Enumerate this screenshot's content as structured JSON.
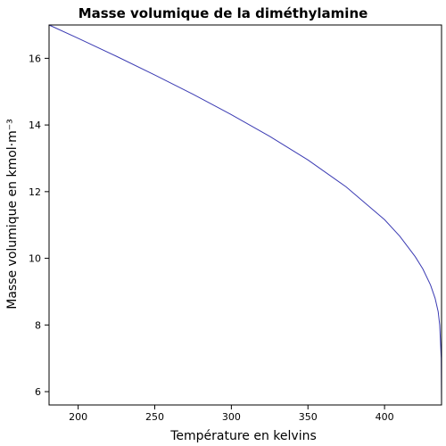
{
  "chart_data": {
    "type": "line",
    "title": "Masse volumique de la diméthylamine",
    "xlabel": "Température en kelvins",
    "ylabel": "Masse volumique en kmol·m⁻³",
    "xlim": [
      181,
      437.2
    ],
    "ylim": [
      5.6,
      17.0
    ],
    "xticks": [
      200,
      250,
      300,
      350,
      400
    ],
    "yticks": [
      6,
      8,
      10,
      12,
      14,
      16
    ],
    "grid": false,
    "series": [
      {
        "color": "#3b3bb3",
        "x": [
          181,
          200,
          225,
          250,
          275,
          300,
          325,
          350,
          375,
          400,
          410,
          420,
          425,
          430,
          433,
          435,
          436,
          437,
          437.2
        ],
        "y": [
          17.0,
          16.6,
          16.06,
          15.5,
          14.92,
          14.31,
          13.66,
          12.95,
          12.14,
          11.16,
          10.66,
          10.05,
          9.68,
          9.2,
          8.8,
          8.4,
          8.0,
          7.0,
          5.6
        ]
      }
    ]
  }
}
